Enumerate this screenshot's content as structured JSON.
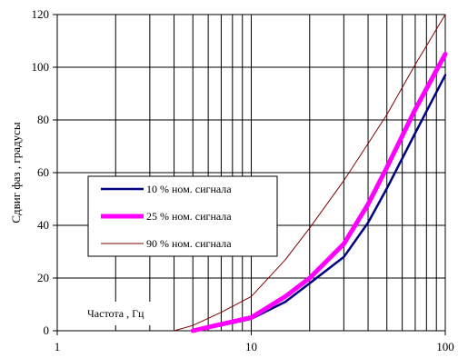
{
  "chart_data": {
    "type": "line",
    "x_scale": "log",
    "xlim": [
      1,
      100
    ],
    "ylim": [
      0,
      120
    ],
    "x_ticks": [
      1,
      10,
      100
    ],
    "y_ticks": [
      0,
      20,
      40,
      60,
      80,
      100,
      120
    ],
    "xlabel": "Частота , Гц",
    "ylabel": "Сдвиг фаз , градусы",
    "grid": true,
    "legend_position": "middle-left",
    "series": [
      {
        "name": "10 % ном. сигнала",
        "color": "#000080",
        "x": [
          5,
          7,
          10,
          15,
          20,
          30,
          40,
          50,
          70,
          100
        ],
        "y": [
          0,
          2,
          4.5,
          11,
          18,
          28,
          41,
          54,
          75,
          97
        ]
      },
      {
        "name": "25 % ном. сигнала",
        "color": "#ff00ff",
        "x": [
          5,
          7,
          10,
          15,
          20,
          30,
          40,
          50,
          70,
          100
        ],
        "y": [
          0,
          2.5,
          5,
          13,
          20,
          33,
          48,
          62,
          84,
          105
        ]
      },
      {
        "name": "90 % ном. сигнала",
        "color": "#800000",
        "x": [
          4,
          5,
          7,
          10,
          15,
          20,
          30,
          40,
          50,
          70,
          100
        ],
        "y": [
          0,
          2,
          7,
          13,
          27,
          39,
          57,
          71,
          82,
          101,
          120
        ]
      }
    ]
  }
}
